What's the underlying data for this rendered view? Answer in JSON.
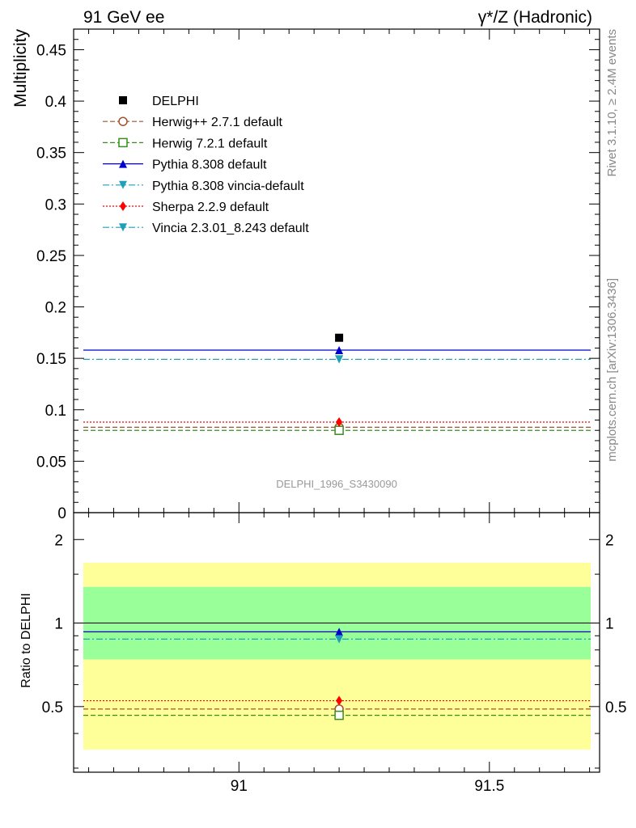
{
  "header": {
    "left_title": "91 GeV ee",
    "right_title": "γ*/Z (Hadronic)"
  },
  "side_labels": {
    "rivet": "Rivet 3.1.10, ≥ 2.4M events",
    "mcplots": "mcplots.cern.ch [arXiv:1306.3436]"
  },
  "analysis_label": "DELPHI_1996_S3430090",
  "colors": {
    "data": "#000000",
    "herwigpp": "#a0522d",
    "herwig7": "#3a8c1e",
    "pythia": "#0000cc",
    "pythia_vincia": "#1fa0b8",
    "sherpa": "#ff0000",
    "vincia": "#1fa0b8",
    "band_inner": "#99ff99",
    "band_outer": "#ffff99"
  },
  "chart_data": [
    {
      "type": "line",
      "panel": "main",
      "ylabel": "Multiplicity",
      "xlim": [
        90.67,
        91.72
      ],
      "ylim": [
        0,
        0.47
      ],
      "yticks": [
        0,
        0.05,
        0.1,
        0.15,
        0.2,
        0.25,
        0.3,
        0.35,
        0.4,
        0.45
      ],
      "ytick_labels": [
        "0",
        "0.05",
        "0.1",
        "0.15",
        "0.2",
        "0.25",
        "0.3",
        "0.35",
        "0.4",
        "0.45"
      ],
      "data": {
        "name": "DELPHI",
        "x": 91.2,
        "y": 0.17
      },
      "series": [
        {
          "name": "Herwig++ 2.7.1 default",
          "key": "herwigpp",
          "y": 0.083,
          "line": "dashed",
          "marker": "circle-open"
        },
        {
          "name": "Herwig 7.2.1 default",
          "key": "herwig7",
          "y": 0.08,
          "line": "dashed",
          "marker": "square-open"
        },
        {
          "name": "Pythia 8.308 default",
          "key": "pythia",
          "y": 0.158,
          "line": "solid",
          "marker": "triangle-up"
        },
        {
          "name": "Pythia 8.308 vincia-default",
          "key": "pythia_vincia",
          "y": 0.149,
          "line": "dashdot",
          "marker": "triangle-down"
        },
        {
          "name": "Sherpa 2.2.9 default",
          "key": "sherpa",
          "y": 0.088,
          "line": "dotted",
          "marker": "diamond"
        },
        {
          "name": "Vincia 2.3.01_8.243 default",
          "key": "vincia",
          "y": 0.149,
          "line": "dashdot",
          "marker": "triangle-down"
        }
      ],
      "legend_position": "top-left"
    },
    {
      "type": "line",
      "panel": "ratio",
      "ylabel": "Ratio to DELPHI",
      "xlim": [
        90.67,
        91.72
      ],
      "ylim": [
        0.29,
        2.5
      ],
      "log_y": true,
      "yticks": [
        0.5,
        1,
        2
      ],
      "ytick_labels": [
        "0.5",
        "1",
        "2"
      ],
      "xticks": [
        91,
        91.5
      ],
      "xtick_labels": [
        "91",
        "91.5"
      ],
      "reference": 1,
      "bands": [
        {
          "name": "outer",
          "lo": 0.35,
          "hi": 1.65
        },
        {
          "name": "inner",
          "lo": 0.74,
          "hi": 1.35
        }
      ],
      "series": [
        {
          "name": "Herwig++ 2.7.1 default",
          "key": "herwigpp",
          "y": 0.49,
          "line": "dashed",
          "marker": "circle-open"
        },
        {
          "name": "Herwig 7.2.1 default",
          "key": "herwig7",
          "y": 0.465,
          "line": "dashed",
          "marker": "square-open"
        },
        {
          "name": "Pythia 8.308 default",
          "key": "pythia",
          "y": 0.93,
          "line": "solid",
          "marker": "triangle-up"
        },
        {
          "name": "Pythia 8.308 vincia-default",
          "key": "pythia_vincia",
          "y": 0.875,
          "line": "dashdot",
          "marker": "triangle-down"
        },
        {
          "name": "Sherpa 2.2.9 default",
          "key": "sherpa",
          "y": 0.525,
          "line": "dotted",
          "marker": "diamond"
        },
        {
          "name": "Vincia 2.3.01_8.243 default",
          "key": "vincia",
          "y": 0.875,
          "line": "dashdot",
          "marker": "triangle-down"
        }
      ]
    }
  ]
}
